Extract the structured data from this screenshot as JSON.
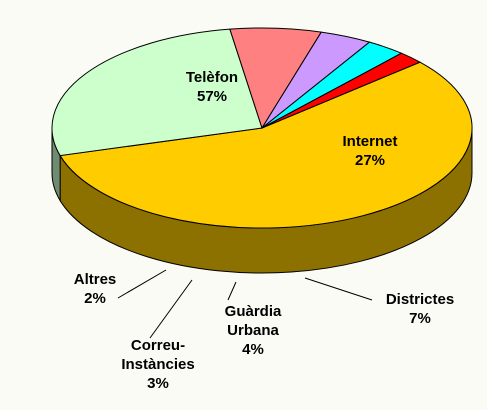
{
  "chart_data": {
    "type": "pie",
    "categories": [
      "Telèfon",
      "Internet",
      "Districtes",
      "Guàrdia Urbana",
      "Correu-Instàncies",
      "Altres"
    ],
    "values": [
      57,
      27,
      7,
      4,
      3,
      2
    ],
    "value_labels": [
      "57%",
      "27%",
      "7%",
      "4%",
      "3%",
      "2%"
    ],
    "colors": [
      "#ffcc00",
      "#ccffcc",
      "#ff8080",
      "#cc99ff",
      "#00ffff",
      "#ff0000"
    ]
  }
}
